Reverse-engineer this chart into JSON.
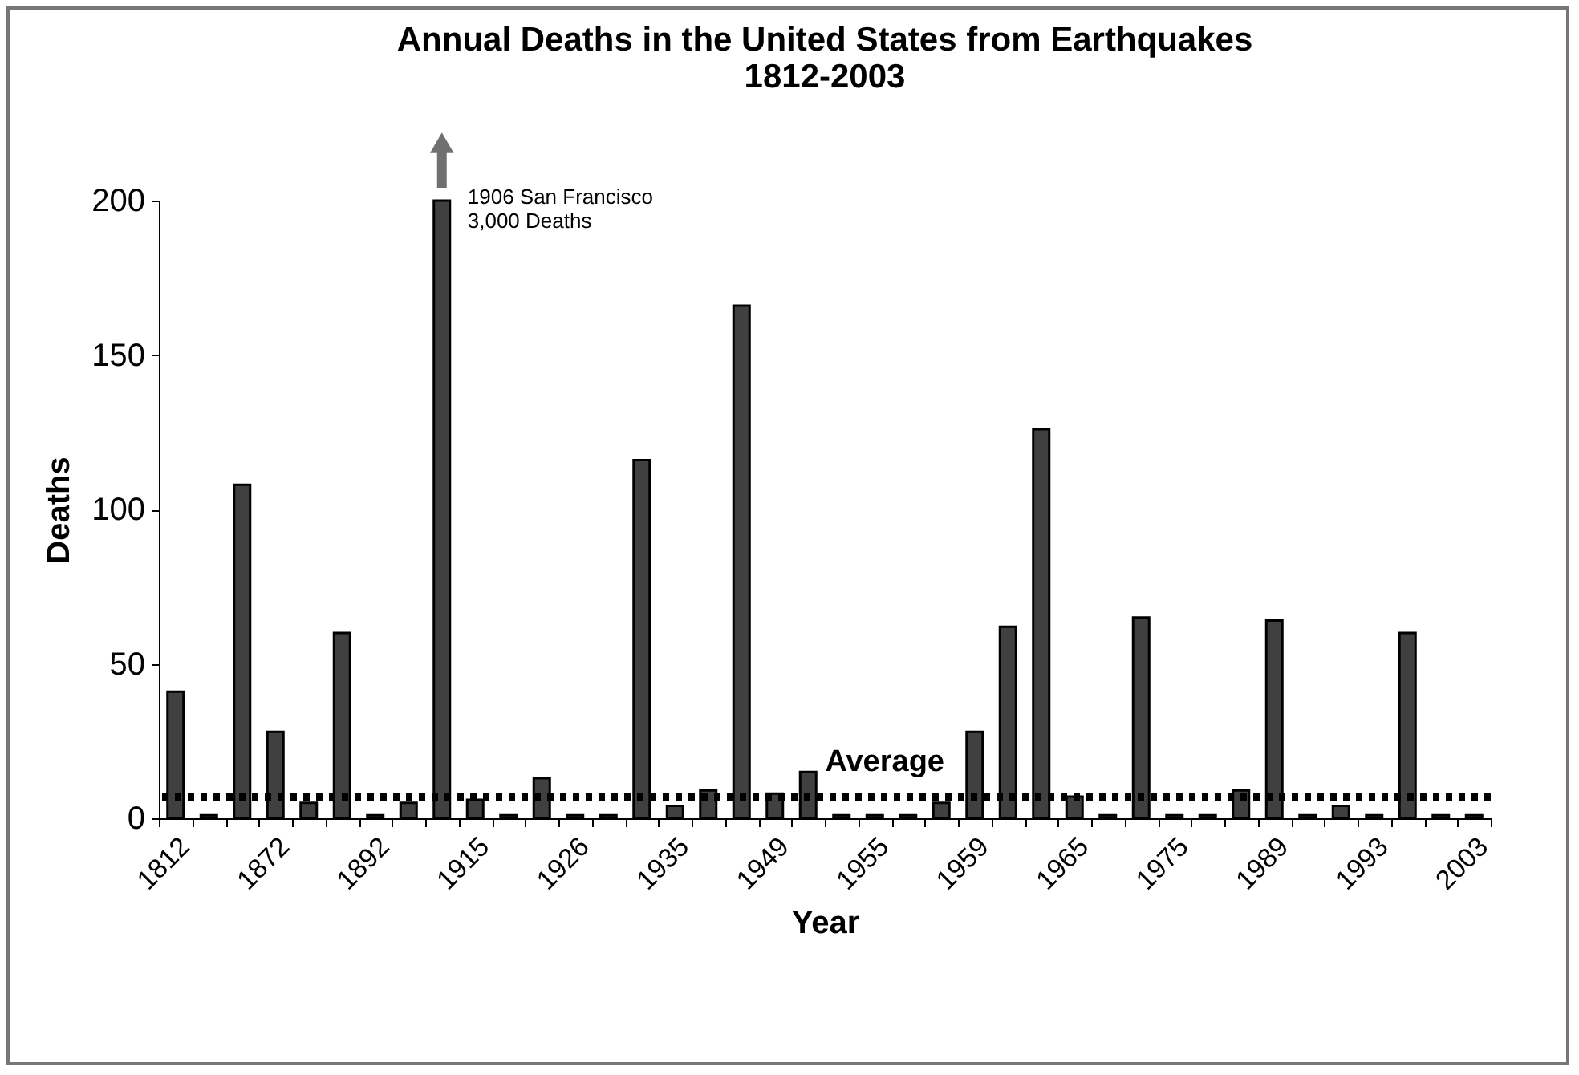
{
  "chart_data": {
    "type": "bar",
    "title": "Annual Deaths in the United States from Earthquakes\n1812-2003",
    "xlabel": "Year",
    "ylabel": "Deaths",
    "categories": [
      "1812",
      null,
      null,
      "1872",
      null,
      null,
      "1892",
      null,
      null,
      "1915",
      null,
      null,
      "1926",
      null,
      null,
      "1935",
      null,
      null,
      "1949",
      null,
      null,
      "1955",
      null,
      null,
      "1959",
      null,
      null,
      "1965",
      null,
      null,
      "1975",
      null,
      null,
      "1989",
      null,
      null,
      "1993",
      null,
      null,
      "2003"
    ],
    "values": [
      41,
      1,
      108,
      28,
      5,
      60,
      1,
      5,
      200,
      6,
      1,
      13,
      1,
      1,
      116,
      4,
      9,
      166,
      8,
      15,
      1,
      1,
      1,
      5,
      28,
      62,
      126,
      7,
      1,
      65,
      1,
      1,
      9,
      64,
      1,
      4,
      1,
      60,
      1,
      1
    ],
    "color": "#404040",
    "ylim": [
      0,
      200
    ],
    "yticks": [
      0,
      50,
      100,
      150,
      200
    ],
    "grid": false,
    "annotations": [
      "1906 San Francisco\n3,000 Deaths"
    ],
    "ref_lines": [
      {
        "axis": "y",
        "value": 7,
        "label": "Average",
        "color": "#000000",
        "line_style": "dotted"
      }
    ]
  }
}
